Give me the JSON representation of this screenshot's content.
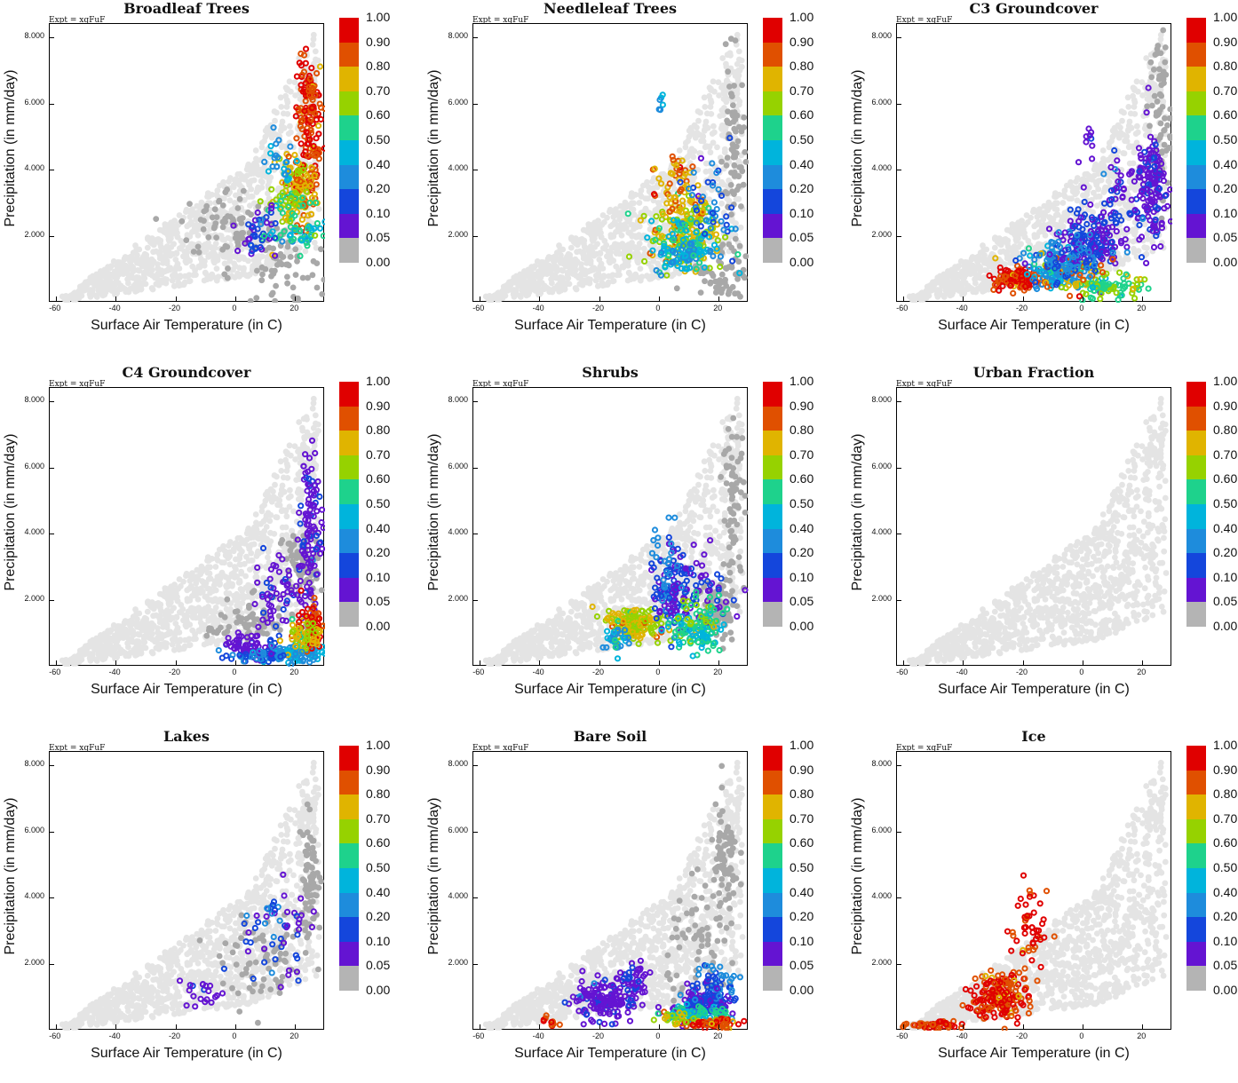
{
  "figure": {
    "expt_label": "Expt = xqFuF",
    "xlabel": "Surface Air Temperature (in C)",
    "ylabel": "Precipitation (in mm/day)",
    "x_ticks": [
      "-60",
      "-40",
      "-20",
      "0",
      "20"
    ],
    "y_ticks": [
      "8.000",
      "6.000",
      "4.000",
      "2.000"
    ],
    "colorbar_labels": [
      "1.00",
      "0.90",
      "0.80",
      "0.70",
      "0.60",
      "0.50",
      "0.40",
      "0.20",
      "0.10",
      "0.05",
      "0.00"
    ],
    "colorbar_colors": [
      "#e00000",
      "#e05000",
      "#e0b400",
      "#96d200",
      "#1ed28c",
      "#00b4dc",
      "#1e8cdc",
      "#1446dc",
      "#6414d2",
      "#b4b4b4"
    ],
    "background_point_color": "#e4e4e4",
    "zero_point_color": "#a8a8a8"
  },
  "chart_data": [
    {
      "type": "scatter",
      "title": "Broadleaf Trees",
      "xlim": [
        -62,
        30
      ],
      "ylim": [
        0,
        8.4
      ],
      "xlabel": "Surface Air Temperature (in C)",
      "ylabel": "Precipitation (in mm/day)",
      "zero_cloud": [
        [
          15,
          1.0,
          14,
          1.2
        ],
        [
          -2,
          2.4,
          14,
          0.9
        ]
      ],
      "clusters": [
        [
          25,
          5.5,
          3.5,
          1.5,
          0.9,
          140
        ],
        [
          22,
          3.4,
          5,
          0.8,
          0.8,
          120
        ],
        [
          17,
          3.2,
          6,
          1.0,
          0.6,
          60
        ],
        [
          8,
          2.0,
          6,
          0.6,
          0.1,
          40
        ],
        [
          14,
          4.3,
          5,
          0.6,
          0.4,
          20
        ],
        [
          22,
          2.0,
          8,
          0.4,
          0.5,
          40
        ]
      ]
    },
    {
      "type": "scatter",
      "title": "Needleleaf Trees",
      "xlim": [
        -62,
        30
      ],
      "ylim": [
        0,
        8.4
      ],
      "xlabel": "Surface Air Temperature (in C)",
      "ylabel": "Precipitation (in mm/day)",
      "zero_cloud": [
        [
          25,
          4.5,
          3,
          2.2
        ],
        [
          22,
          1.0,
          10,
          0.8
        ]
      ],
      "clusters": [
        [
          8,
          2.2,
          9,
          0.9,
          0.7,
          160
        ],
        [
          6,
          3.5,
          7,
          1.0,
          0.8,
          50
        ],
        [
          10,
          1.8,
          10,
          0.7,
          0.5,
          80
        ],
        [
          8,
          1.4,
          8,
          0.4,
          0.4,
          50
        ],
        [
          18,
          3.0,
          6,
          1.2,
          0.2,
          40
        ],
        [
          1,
          5.8,
          1.5,
          0.5,
          0.4,
          6
        ]
      ]
    },
    {
      "type": "scatter",
      "title": "C3 Groundcover",
      "xlim": [
        -62,
        30
      ],
      "ylim": [
        0,
        8.4
      ],
      "xlabel": "Surface Air Temperature (in C)",
      "ylabel": "Precipitation (in mm/day)",
      "zero_cloud": [
        [
          26,
          5.5,
          3,
          2.2
        ]
      ],
      "clusters": [
        [
          -22,
          0.7,
          6,
          0.3,
          0.9,
          130
        ],
        [
          -8,
          1.0,
          8,
          0.5,
          0.4,
          140
        ],
        [
          3,
          1.8,
          8,
          0.8,
          0.1,
          160
        ],
        [
          23,
          3.5,
          4,
          1.5,
          0.05,
          140
        ],
        [
          8,
          0.5,
          9,
          0.3,
          0.6,
          90
        ],
        [
          -4,
          0.9,
          10,
          0.5,
          0.8,
          30
        ],
        [
          -5,
          1.2,
          12,
          0.6,
          0.2,
          80
        ],
        [
          14,
          3.2,
          8,
          1.0,
          0.1,
          50
        ],
        [
          2,
          4.8,
          2,
          0.8,
          0.05,
          10
        ]
      ]
    },
    {
      "type": "scatter",
      "title": "C4 Groundcover",
      "xlim": [
        -62,
        30
      ],
      "ylim": [
        0,
        8.4
      ],
      "xlabel": "Surface Air Temperature (in C)",
      "ylabel": "Precipitation (in mm/day)",
      "zero_cloud": [
        [
          5,
          1.3,
          12,
          0.6
        ],
        [
          22,
          3.0,
          5,
          1.0
        ]
      ],
      "clusters": [
        [
          25,
          4.2,
          3,
          1.8,
          0.05,
          110
        ],
        [
          15,
          2.2,
          8,
          1.0,
          0.05,
          60
        ],
        [
          5,
          0.6,
          8,
          0.3,
          0.05,
          70
        ],
        [
          20,
          0.4,
          8,
          0.25,
          0.4,
          90
        ],
        [
          25,
          1.2,
          4,
          0.6,
          0.9,
          70
        ],
        [
          22,
          0.8,
          5,
          0.4,
          0.7,
          50
        ],
        [
          10,
          0.3,
          10,
          0.2,
          0.2,
          40
        ]
      ]
    },
    {
      "type": "scatter",
      "title": "Shrubs",
      "xlim": [
        -62,
        30
      ],
      "ylim": [
        0,
        8.4
      ],
      "xlabel": "Surface Air Temperature (in C)",
      "ylabel": "Precipitation (in mm/day)",
      "zero_cloud": [
        [
          25,
          4.8,
          3,
          2.0
        ],
        [
          20,
          1.8,
          6,
          0.8
        ]
      ],
      "clusters": [
        [
          -8,
          1.3,
          7,
          0.4,
          0.7,
          170
        ],
        [
          5,
          2.2,
          7,
          0.9,
          0.1,
          120
        ],
        [
          12,
          1.0,
          8,
          0.5,
          0.5,
          90
        ],
        [
          3,
          3.2,
          6,
          0.9,
          0.2,
          40
        ],
        [
          18,
          2.5,
          8,
          1.0,
          0.05,
          30
        ],
        [
          -14,
          0.8,
          4,
          0.3,
          0.4,
          30
        ],
        [
          15,
          1.6,
          8,
          0.5,
          0.6,
          40
        ]
      ]
    },
    {
      "type": "scatter",
      "title": "Urban Fraction",
      "xlim": [
        -62,
        30
      ],
      "ylim": [
        0,
        8.4
      ],
      "xlabel": "Surface Air Temperature (in C)",
      "ylabel": "Precipitation (in mm/day)",
      "zero_cloud": [],
      "clusters": []
    },
    {
      "type": "scatter",
      "title": "Lakes",
      "xlim": [
        -62,
        30
      ],
      "ylim": [
        0,
        8.4
      ],
      "xlabel": "Surface Air Temperature (in C)",
      "ylabel": "Precipitation (in mm/day)",
      "zero_cloud": [
        [
          10,
          2.0,
          12,
          1.0
        ],
        [
          25,
          4.5,
          3,
          1.5
        ]
      ],
      "clusters": [
        [
          -10,
          1.2,
          6,
          0.4,
          0.05,
          20
        ],
        [
          10,
          2.5,
          8,
          1.2,
          0.1,
          25
        ],
        [
          20,
          3.0,
          6,
          1.2,
          0.05,
          20
        ],
        [
          12,
          3.8,
          4,
          0.6,
          0.2,
          10
        ]
      ]
    },
    {
      "type": "scatter",
      "title": "Bare Soil",
      "xlim": [
        -62,
        30
      ],
      "ylim": [
        0,
        8.4
      ],
      "xlabel": "Surface Air Temperature (in C)",
      "ylabel": "Precipitation (in mm/day)",
      "zero_cloud": [
        [
          15,
          2.5,
          10,
          1.5
        ],
        [
          22,
          5.0,
          4,
          1.5
        ]
      ],
      "clusters": [
        [
          -18,
          0.9,
          8,
          0.5,
          0.05,
          160
        ],
        [
          -8,
          1.5,
          4,
          0.5,
          0.05,
          40
        ],
        [
          15,
          0.8,
          9,
          0.4,
          0.1,
          140
        ],
        [
          12,
          0.5,
          9,
          0.2,
          0.5,
          80
        ],
        [
          18,
          0.2,
          8,
          0.12,
          0.9,
          60
        ],
        [
          -36,
          0.3,
          3,
          0.15,
          0.9,
          10
        ],
        [
          6,
          0.4,
          5,
          0.2,
          0.7,
          20
        ],
        [
          20,
          1.5,
          5,
          0.5,
          0.2,
          40
        ]
      ]
    },
    {
      "type": "scatter",
      "title": "Ice",
      "xlim": [
        -62,
        30
      ],
      "ylim": [
        0,
        8.4
      ],
      "xlabel": "Surface Air Temperature (in C)",
      "ylabel": "Precipitation (in mm/day)",
      "zero_cloud": [],
      "clusters": [
        [
          -27,
          1.0,
          8,
          0.6,
          0.9,
          180
        ],
        [
          -50,
          0.15,
          8,
          0.1,
          0.9,
          60
        ],
        [
          -18,
          3.0,
          5,
          1.0,
          0.9,
          50
        ]
      ]
    }
  ]
}
